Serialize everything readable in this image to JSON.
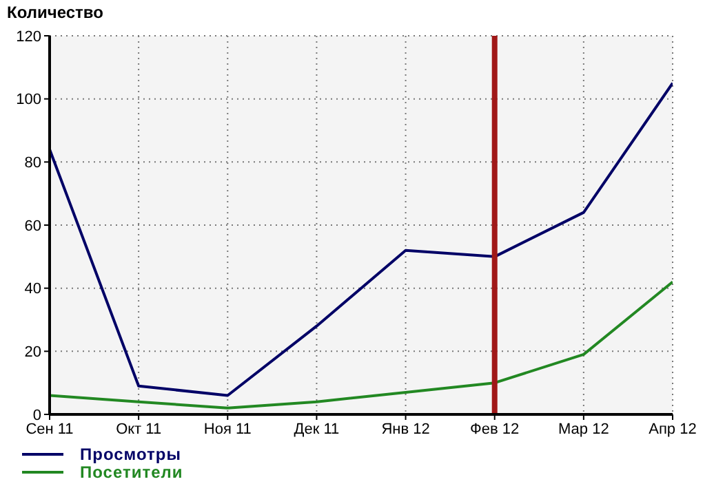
{
  "chart_data": {
    "type": "line",
    "title": "Количество",
    "categories": [
      "Сен 11",
      "Окт 11",
      "Ноя 11",
      "Дек 11",
      "Янв 12",
      "Фев 12",
      "Мар 12",
      "Апр 12"
    ],
    "series": [
      {
        "name": "Просмотры",
        "color": "#000066",
        "values": [
          84,
          9,
          6,
          28,
          52,
          50,
          64,
          105
        ]
      },
      {
        "name": "Посетители",
        "color": "#228822",
        "values": [
          6,
          4,
          2,
          4,
          7,
          10,
          19,
          42
        ]
      }
    ],
    "ylim": [
      0,
      120
    ],
    "yticks": [
      0,
      20,
      40,
      60,
      80,
      100,
      120
    ],
    "grid": true,
    "legend": "bottom left",
    "marker": "none",
    "line_style": "solid",
    "ref_lines": [
      {
        "axis": "x",
        "value": "Фев 12",
        "color": "#a01818"
      }
    ]
  }
}
